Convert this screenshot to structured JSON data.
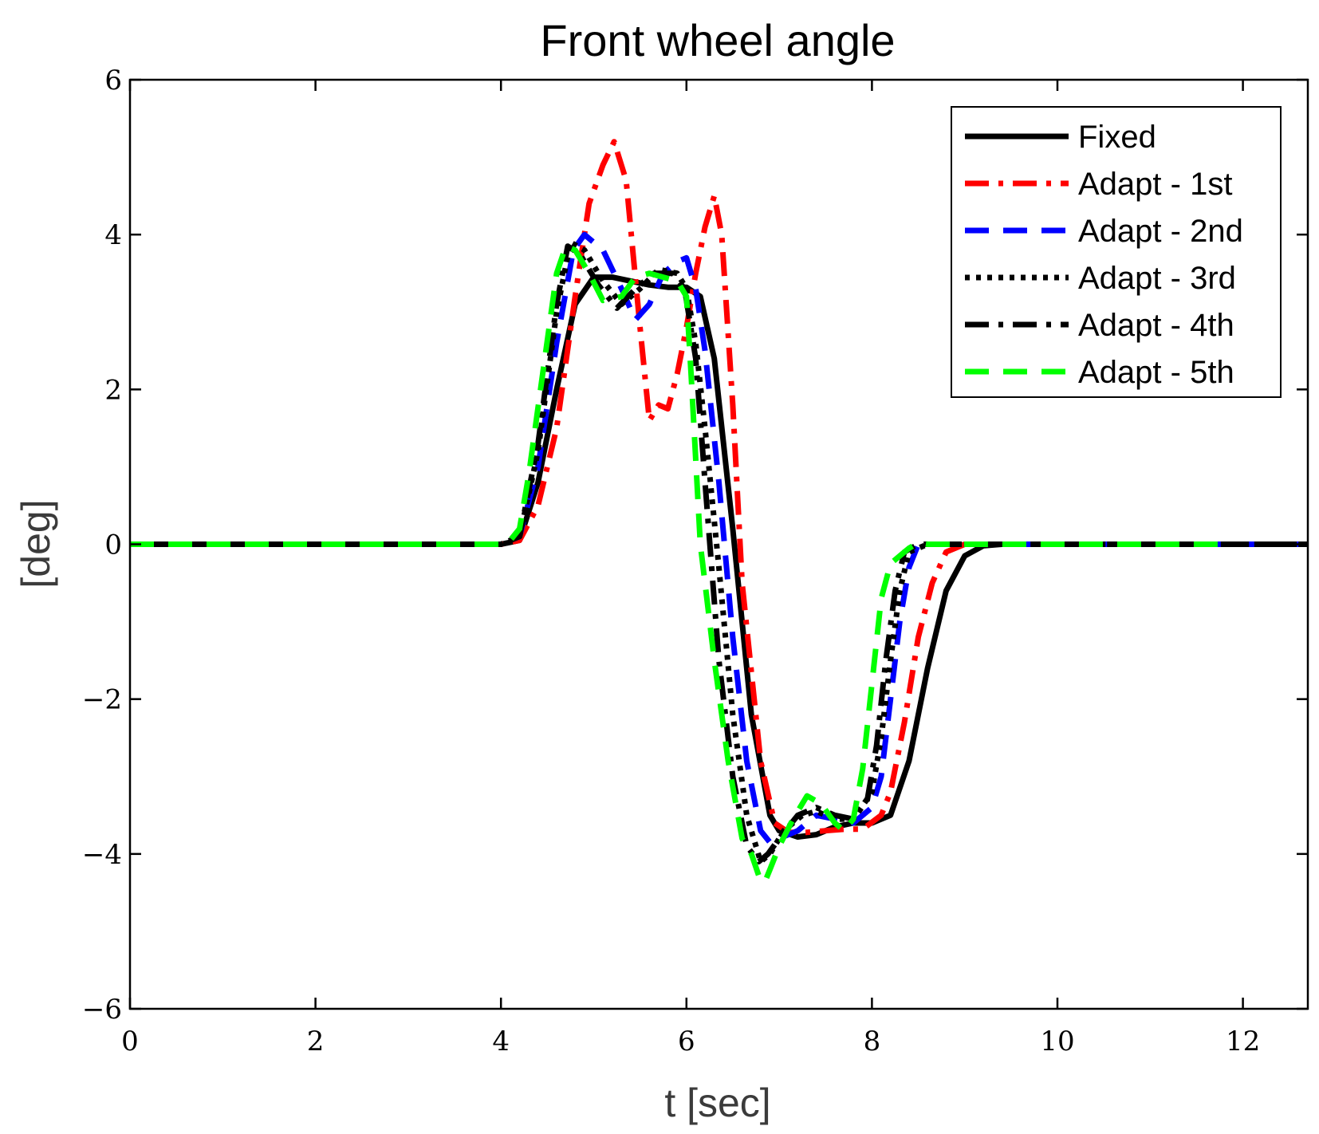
{
  "chart_data": {
    "type": "line",
    "title": "Front wheel angle",
    "xlabel": "t [sec]",
    "ylabel": "[deg]",
    "xlim": [
      0,
      12.7
    ],
    "ylim": [
      -6,
      6
    ],
    "xticks": [
      0,
      2,
      4,
      6,
      8,
      10,
      12
    ],
    "yticks": [
      -6,
      -4,
      -2,
      0,
      2,
      4,
      6
    ],
    "xtick_labels": [
      "0",
      "2",
      "4",
      "6",
      "8",
      "10",
      "12"
    ],
    "ytick_labels": [
      "−6",
      "−4",
      "−2",
      "0",
      "2",
      "4",
      "6"
    ],
    "grid": false,
    "legend_position": "top-right",
    "series": [
      {
        "name": "Fixed",
        "color": "#000000",
        "dash": "solid",
        "x": [
          0,
          4.0,
          4.2,
          4.4,
          4.6,
          4.8,
          5.0,
          5.2,
          5.4,
          5.6,
          5.8,
          6.0,
          6.15,
          6.3,
          6.5,
          6.7,
          6.9,
          7.0,
          7.2,
          7.4,
          7.6,
          7.8,
          8.0,
          8.2,
          8.4,
          8.6,
          8.8,
          9.0,
          9.2,
          9.4,
          12.7
        ],
        "y": [
          0,
          0,
          0.05,
          0.8,
          2.0,
          3.1,
          3.45,
          3.45,
          3.4,
          3.35,
          3.32,
          3.32,
          3.2,
          2.4,
          0.2,
          -2.2,
          -3.5,
          -3.7,
          -3.78,
          -3.75,
          -3.65,
          -3.6,
          -3.6,
          -3.5,
          -2.8,
          -1.6,
          -0.6,
          -0.15,
          -0.02,
          0,
          0
        ]
      },
      {
        "name": "Adapt - 1st",
        "color": "#ff0000",
        "dash": "dashdot",
        "x": [
          0,
          4.0,
          4.2,
          4.4,
          4.6,
          4.8,
          4.95,
          5.1,
          5.22,
          5.35,
          5.5,
          5.6,
          5.7,
          5.8,
          5.9,
          6.0,
          6.1,
          6.2,
          6.3,
          6.38,
          6.5,
          6.6,
          6.8,
          6.95,
          7.1,
          7.3,
          7.5,
          7.7,
          7.9,
          8.1,
          8.2,
          8.35,
          8.5,
          8.65,
          8.8,
          9.0,
          9.2,
          9.7
        ],
        "y": [
          0,
          0,
          0.05,
          0.5,
          1.5,
          3.2,
          4.4,
          4.9,
          5.2,
          4.7,
          2.8,
          1.6,
          1.8,
          1.75,
          2.2,
          2.8,
          3.5,
          4.1,
          4.5,
          4.0,
          1.8,
          -0.5,
          -2.8,
          -3.6,
          -3.72,
          -3.72,
          -3.7,
          -3.68,
          -3.68,
          -3.5,
          -3.2,
          -2.3,
          -1.2,
          -0.5,
          -0.1,
          0,
          0,
          0
        ]
      },
      {
        "name": "Adapt - 2nd",
        "color": "#0000ff",
        "dash": "dashed",
        "x": [
          0,
          4.0,
          4.2,
          4.4,
          4.6,
          4.78,
          4.9,
          5.1,
          5.3,
          5.45,
          5.6,
          5.75,
          5.9,
          6.0,
          6.1,
          6.2,
          6.35,
          6.5,
          6.65,
          6.8,
          6.9,
          7.0,
          7.2,
          7.4,
          7.6,
          7.8,
          8.0,
          8.1,
          8.2,
          8.3,
          8.4,
          8.5,
          8.7,
          9.0,
          12.7
        ],
        "y": [
          0,
          0,
          0.1,
          1.0,
          2.6,
          3.8,
          4.0,
          3.8,
          3.3,
          2.9,
          3.1,
          3.5,
          3.65,
          3.7,
          3.3,
          2.5,
          0.8,
          -1.2,
          -2.8,
          -3.7,
          -3.85,
          -3.8,
          -3.7,
          -3.5,
          -3.55,
          -3.6,
          -3.4,
          -3.0,
          -2.0,
          -1.0,
          -0.3,
          0,
          0,
          0,
          0
        ]
      },
      {
        "name": "Adapt - 3rd",
        "color": "#000000",
        "dash": "dotted",
        "x": [
          0,
          4.0,
          4.2,
          4.4,
          4.6,
          4.75,
          4.9,
          5.1,
          5.3,
          5.5,
          5.7,
          5.9,
          6.0,
          6.1,
          6.2,
          6.35,
          6.5,
          6.65,
          6.8,
          6.9,
          7.05,
          7.25,
          7.4,
          7.6,
          7.8,
          8.0,
          8.1,
          8.2,
          8.3,
          8.4,
          8.6,
          9.0,
          12.7
        ],
        "y": [
          0,
          0,
          0.1,
          1.2,
          3.0,
          3.9,
          3.8,
          3.4,
          3.1,
          3.3,
          3.55,
          3.5,
          3.3,
          2.6,
          1.5,
          -0.3,
          -2.2,
          -3.5,
          -4.1,
          -4.0,
          -3.7,
          -3.5,
          -3.45,
          -3.55,
          -3.55,
          -3.2,
          -2.5,
          -1.5,
          -0.6,
          -0.1,
          0,
          0,
          0
        ]
      },
      {
        "name": "Adapt - 4th",
        "color": "#000000",
        "dash": "dashdot",
        "x": [
          0,
          4.0,
          4.2,
          4.4,
          4.6,
          4.72,
          4.85,
          5.05,
          5.25,
          5.45,
          5.65,
          5.85,
          5.98,
          6.1,
          6.2,
          6.35,
          6.5,
          6.65,
          6.78,
          6.88,
          7.0,
          7.2,
          7.4,
          7.6,
          7.8,
          7.95,
          8.05,
          8.15,
          8.25,
          8.35,
          8.5,
          8.8,
          12.7
        ],
        "y": [
          0,
          0,
          0.1,
          1.3,
          3.1,
          3.85,
          3.75,
          3.35,
          3.05,
          3.3,
          3.5,
          3.5,
          3.3,
          2.4,
          0.8,
          -1.5,
          -3.0,
          -3.9,
          -4.1,
          -4.0,
          -3.8,
          -3.5,
          -3.4,
          -3.5,
          -3.55,
          -3.3,
          -2.6,
          -1.5,
          -0.6,
          -0.1,
          0,
          0,
          0
        ]
      },
      {
        "name": "Adapt - 5th",
        "color": "#00ff00",
        "dash": "dashed",
        "x": [
          0,
          4.0,
          4.1,
          4.2,
          4.3,
          4.45,
          4.6,
          4.7,
          4.8,
          4.95,
          5.1,
          5.3,
          5.45,
          5.6,
          5.75,
          5.9,
          6.0,
          6.05,
          6.15,
          6.3,
          6.45,
          6.6,
          6.7,
          6.8,
          6.85,
          6.9,
          7.0,
          7.15,
          7.3,
          7.45,
          7.6,
          7.7,
          7.8,
          7.9,
          8.0,
          8.1,
          8.2,
          8.3,
          8.4,
          8.5,
          8.6,
          8.8,
          9.2,
          11.8
        ],
        "y": [
          0,
          0,
          0.05,
          0.2,
          0.9,
          2.2,
          3.5,
          3.85,
          3.8,
          3.5,
          3.15,
          3.2,
          3.45,
          3.5,
          3.45,
          3.4,
          3.2,
          2.2,
          0.0,
          -1.5,
          -2.8,
          -3.8,
          -4.0,
          -4.35,
          -4.35,
          -4.2,
          -3.9,
          -3.55,
          -3.25,
          -3.35,
          -3.6,
          -3.7,
          -3.55,
          -2.9,
          -1.8,
          -0.7,
          -0.25,
          -0.15,
          -0.05,
          0.02,
          0,
          0,
          0,
          0
        ]
      }
    ]
  }
}
